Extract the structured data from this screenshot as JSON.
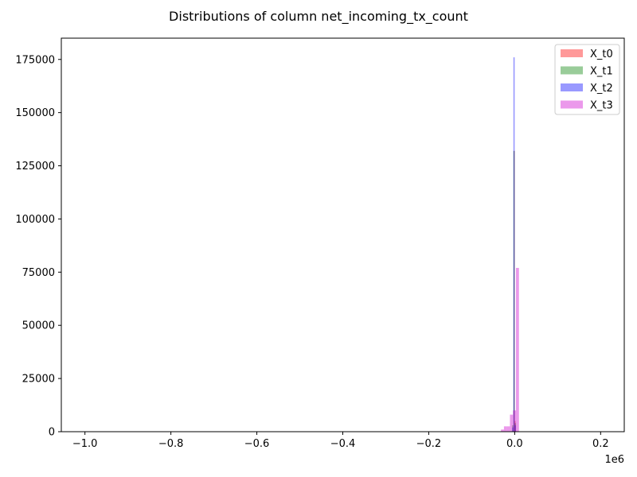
{
  "chart_data": {
    "type": "histogram",
    "title": "Distributions of column net_incoming_tx_count",
    "xlabel": "",
    "ylabel": "",
    "x_offset_label": "1e6",
    "xlim": [
      -1.055,
      0.255
    ],
    "ylim": [
      0,
      185000
    ],
    "x_ticks": [
      -1.0,
      -0.8,
      -0.6,
      -0.4,
      -0.2,
      0.0,
      0.2
    ],
    "x_tick_labels": [
      "−1.0",
      "−0.8",
      "−0.6",
      "−0.4",
      "−0.2",
      "0.0",
      "0.2"
    ],
    "y_ticks": [
      0,
      25000,
      50000,
      75000,
      100000,
      125000,
      150000,
      175000
    ],
    "y_tick_labels": [
      "0",
      "25000",
      "50000",
      "75000",
      "100000",
      "125000",
      "150000",
      "175000"
    ],
    "grid": false,
    "legend_position": "top-right",
    "series": [
      {
        "name": "X_t0",
        "color": "#ff0000",
        "alpha": 0.4,
        "bins": [
          {
            "x0": -0.002,
            "x1": 0.0,
            "count": 132000
          },
          {
            "x0": 0.0,
            "x1": 0.002,
            "count": 5000
          }
        ]
      },
      {
        "name": "X_t1",
        "color": "#008000",
        "alpha": 0.4,
        "bins": [
          {
            "x0": -0.006,
            "x1": -0.003,
            "count": 3000
          },
          {
            "x0": -0.003,
            "x1": 0.0,
            "count": 132000
          },
          {
            "x0": 0.0,
            "x1": 0.003,
            "count": 4000
          }
        ]
      },
      {
        "name": "X_t2",
        "color": "#0000ff",
        "alpha": 0.4,
        "bins": [
          {
            "x0": -0.006,
            "x1": -0.003,
            "count": 2000
          },
          {
            "x0": -0.003,
            "x1": 0.0,
            "count": 176000
          },
          {
            "x0": 0.0,
            "x1": 0.003,
            "count": 3000
          }
        ]
      },
      {
        "name": "X_t3",
        "color": "#cc00cc",
        "alpha": 0.4,
        "bins": [
          {
            "x0": -0.032,
            "x1": -0.025,
            "count": 1000
          },
          {
            "x0": -0.025,
            "x1": -0.018,
            "count": 2500
          },
          {
            "x0": -0.018,
            "x1": -0.011,
            "count": 2500
          },
          {
            "x0": -0.011,
            "x1": -0.004,
            "count": 8000
          },
          {
            "x0": -0.004,
            "x1": 0.003,
            "count": 10000
          },
          {
            "x0": 0.003,
            "x1": 0.01,
            "count": 77000
          }
        ]
      }
    ]
  }
}
